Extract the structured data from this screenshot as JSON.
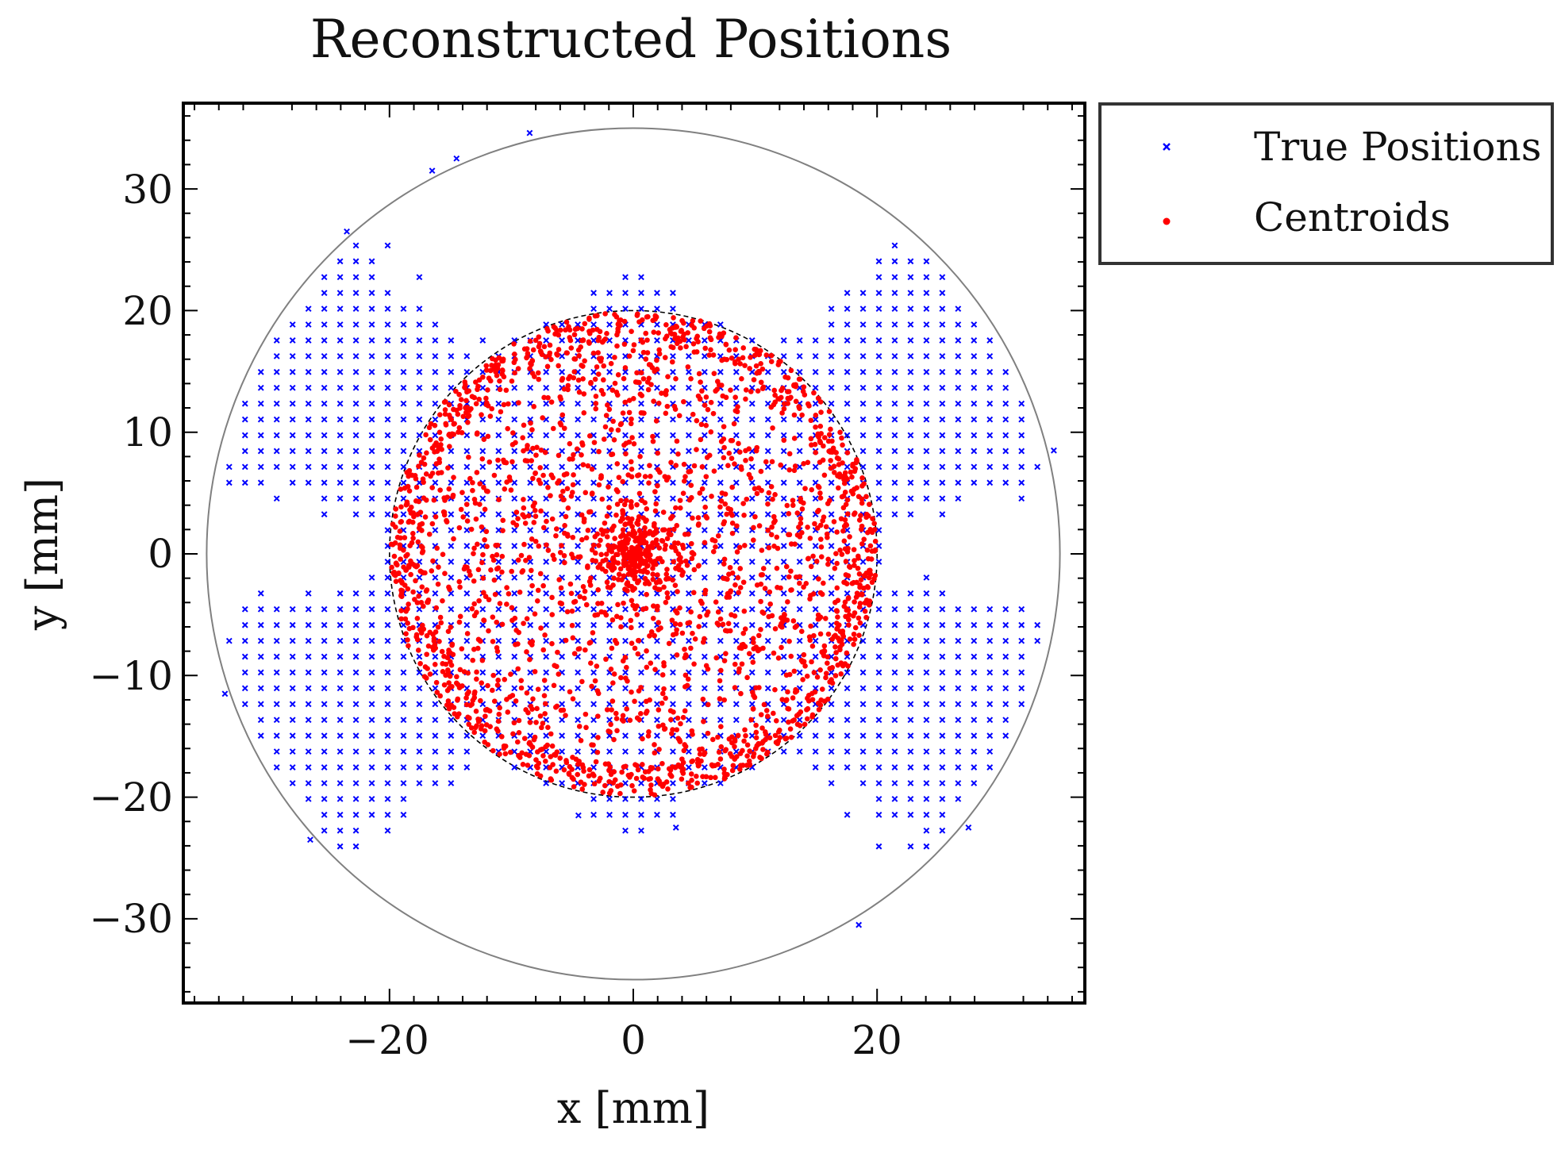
{
  "chart_data": {
    "type": "scatter",
    "title": "Reconstructed Positions",
    "xlabel": "x [mm]",
    "ylabel": "y [mm]",
    "xlim": [
      -37,
      37
    ],
    "ylim": [
      -37,
      37
    ],
    "xticks": [
      -20,
      0,
      20
    ],
    "xtick_labels": [
      "−20",
      "0",
      "20"
    ],
    "yticks": [
      30,
      20,
      10,
      0,
      -10,
      -20,
      -30
    ],
    "ytick_labels": [
      "30",
      "20",
      "10",
      "0",
      "−10",
      "−20",
      "−30"
    ],
    "grid": false,
    "legend_position": "outside-top-right",
    "legend": [
      "True Positions",
      "Centroids"
    ],
    "circles": [
      {
        "description": "outer boundary",
        "center": [
          0,
          0
        ],
        "radius": 35,
        "color": "#808080",
        "style": "solid"
      },
      {
        "description": "inner boundary",
        "center": [
          0,
          0
        ],
        "radius": 20,
        "color": "#000000",
        "style": "dashed"
      }
    ],
    "series": [
      {
        "name": "True Positions",
        "marker": "x",
        "color": "#0000ff",
        "grid_spacing": 1.3,
        "extent": "square lattice points inside the 20 mm disk plus four diagonal arms reaching the 35 mm circle",
        "outliers": [
          [
            -8.5,
            34.6
          ],
          [
            -14.5,
            32.5
          ],
          [
            -16.5,
            31.5
          ],
          [
            -23.5,
            26.5
          ],
          [
            34.5,
            8.5
          ],
          [
            -33.5,
            -11.5
          ],
          [
            -26.5,
            -23.5
          ],
          [
            27.5,
            -22.5
          ],
          [
            18.5,
            -30.5
          ],
          [
            3.5,
            -22.5
          ],
          [
            -4.5,
            -21.5
          ]
        ]
      },
      {
        "name": "Centroids",
        "marker": "o",
        "color": "#ff0000",
        "count": 2600,
        "extent": "points inside the 20 mm disk, denser at the centre and along the rim"
      }
    ]
  },
  "colors": {
    "true_positions": "#0000ff",
    "centroids": "#ff0000",
    "outer_circle": "#808080",
    "inner_circle": "#000000",
    "axes": "#000000",
    "legend_border": "#333333"
  }
}
